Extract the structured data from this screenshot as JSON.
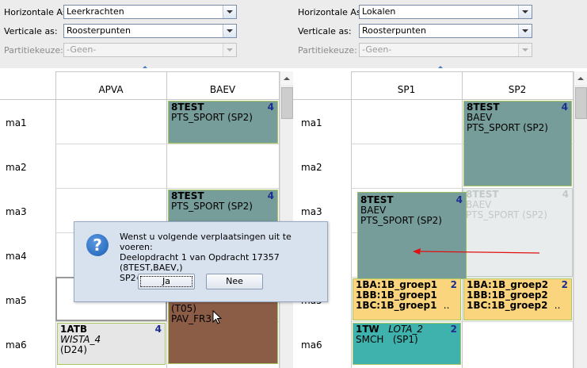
{
  "left_panel": {
    "horiz_label": "Horizontale As:",
    "horiz_value": "Leerkrachten",
    "vert_label": "Verticale as:",
    "vert_value": "Roosterpunten",
    "part_label": "Partitiekeuze:",
    "part_value": "-Geen-",
    "columns": [
      "APVA",
      "BAEV"
    ],
    "rows": [
      "ma1",
      "ma2",
      "ma3",
      "ma4",
      "ma5",
      "ma6"
    ],
    "cards": {
      "baev1": {
        "title": "8TEST",
        "num": "4",
        "line1": "PTS_SPORT (SP2)"
      },
      "baev2": {
        "title": "8TEST",
        "num": "4",
        "line1": "PTS_SPORT (SP2)"
      },
      "baev3": {
        "line1": "(T05)",
        "line2": "PAV_FR3"
      },
      "apva6": {
        "title": "1ATB",
        "num": "4",
        "line1": "WISTA_4",
        "line2": "(D24)"
      }
    }
  },
  "right_panel": {
    "horiz_label": "Horizontale As:",
    "horiz_value": "Lokalen",
    "vert_label": "Verticale as:",
    "vert_value": "Roosterpunten",
    "part_label": "Partitiekeuze:",
    "part_value": "-Geen-",
    "columns": [
      "SP1",
      "SP2"
    ],
    "rows": [
      "ma1",
      "ma2",
      "ma3",
      "ma4",
      "ma5",
      "ma6"
    ],
    "cards": {
      "sp2_top": {
        "title": "8TEST",
        "num": "4",
        "line1": "BAEV",
        "line2": "PTS_SPORT (SP2)"
      },
      "sp2_ghost": {
        "title": "8TEST",
        "num": "4",
        "line1": "BAEV",
        "line2": "PTS_SPORT (SP2)"
      },
      "sp1_drag": {
        "title": "8TEST",
        "num": "4",
        "line1": "BAEV",
        "line2": "PTS_SPORT (SP2)"
      },
      "sp1_orange": {
        "l1": "1BA:1B_groep1",
        "l2": "1BB:1B_groep1",
        "l3": "1BC:1B_groep1",
        "tail": "..",
        "num": "2"
      },
      "sp2_orange": {
        "l1": "1BA:1B_groep2",
        "l2": "1BB:1B_groep2",
        "l3": "1BC:1B_groep2",
        "tail": "..",
        "num": "2"
      },
      "sp1_cyan": {
        "title": "1TW",
        "subtitle": "LOTA_2",
        "line1": "SMCH",
        "line2": "(SP1)",
        "num": "2"
      }
    }
  },
  "dialog": {
    "message_line1": "Wenst u volgende verplaatsingen uit te voeren:",
    "message_line2": "Deelopdracht 1 van Opdracht 17357 (8TEST,BAEV,)",
    "message_line3": "SP2=>SP1",
    "yes_label": "Ja",
    "no_label": "Nee",
    "icon": "question-icon"
  },
  "colors": {
    "teal": "#769d9a",
    "orange": "#fbd57e",
    "brown": "#8b5d47",
    "cyan": "#3fb2ad",
    "arrow": "#e01010"
  }
}
